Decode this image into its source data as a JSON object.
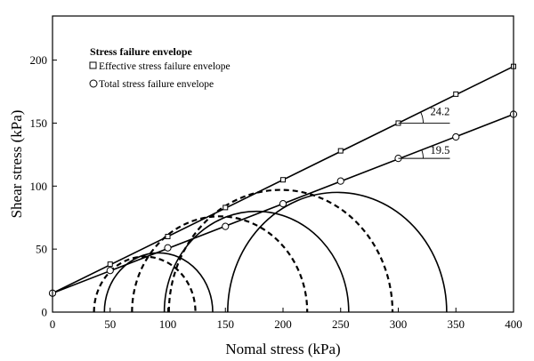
{
  "chart_data": {
    "type": "scatter",
    "title": "",
    "xlabel": "Nomal stress (kPa)",
    "ylabel": "Shear stress (kPa)",
    "xlim": [
      0,
      400
    ],
    "ylim": [
      0,
      235
    ],
    "x_ticks": [
      0,
      50,
      100,
      150,
      200,
      250,
      300,
      350,
      400
    ],
    "y_ticks": [
      0,
      50,
      100,
      150,
      200
    ],
    "grid": false,
    "legend": {
      "title": "Stress failure envelope",
      "position": "top-left",
      "entries": [
        {
          "marker": "square",
          "label": "Effective stress failure envelope"
        },
        {
          "marker": "circle",
          "label": "Total stress failure envelope"
        }
      ]
    },
    "series": [
      {
        "name": "Effective stress failure envelope",
        "marker": "square",
        "line": {
          "intercept": 15,
          "x_range": [
            0,
            400
          ],
          "y_end": 195
        },
        "x": [
          0,
          50,
          100,
          150,
          200,
          250,
          300,
          350,
          400
        ],
        "y": [
          15,
          38,
          60,
          83,
          105,
          128,
          150,
          173,
          195
        ]
      },
      {
        "name": "Total stress failure envelope",
        "marker": "circle",
        "line": {
          "intercept": 15,
          "x_range": [
            0,
            400
          ],
          "y_end": 157
        },
        "x": [
          0,
          50,
          100,
          150,
          200,
          250,
          300,
          350,
          400
        ],
        "y": [
          15,
          33,
          51,
          68,
          86,
          104,
          122,
          139,
          157
        ]
      }
    ],
    "mohr_circles": [
      {
        "style": "solid",
        "center": 92,
        "radius": 47
      },
      {
        "style": "solid",
        "center": 177,
        "radius": 80
      },
      {
        "style": "solid",
        "center": 247,
        "radius": 95
      },
      {
        "style": "dashed",
        "center": 80,
        "radius": 44
      },
      {
        "style": "dashed",
        "center": 145,
        "radius": 76
      },
      {
        "style": "dashed",
        "center": 198,
        "radius": 97
      }
    ],
    "annotations": [
      {
        "text": "24.2",
        "series": "Effective stress failure envelope",
        "anchor_x": 300
      },
      {
        "text": "19.5",
        "series": "Total stress failure envelope",
        "anchor_x": 300
      }
    ]
  }
}
